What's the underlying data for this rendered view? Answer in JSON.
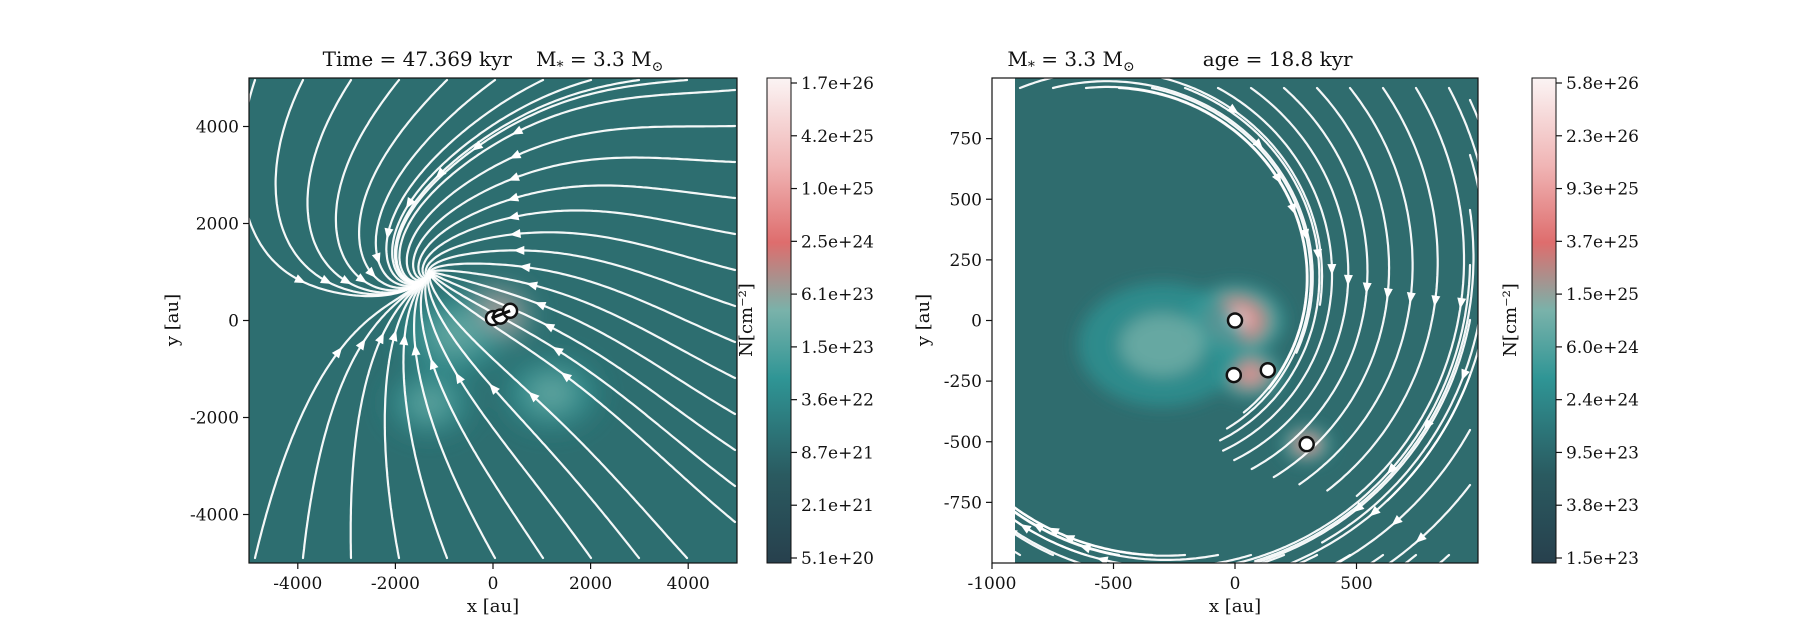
{
  "chart_data": [
    {
      "type": "heatmap",
      "subtype": "column density map with velocity streamlines",
      "title": "Time = 47.369 kyr    M$_*$ = 3.3 M$_\\odot$",
      "title_parts": [
        "Time = 47.369 kyr",
        "M",
        "*",
        " = 3.3 M",
        "⊙"
      ],
      "xlabel": "x [au]",
      "ylabel": "y [au]",
      "xlim": [
        -5000,
        5000
      ],
      "ylim": [
        -5000,
        5000
      ],
      "xticks": [
        "-4000",
        "-2000",
        "0",
        "2000",
        "4000"
      ],
      "xtick_values": [
        -4000,
        -2000,
        0,
        2000,
        4000
      ],
      "yticks": [
        "4000",
        "2000",
        "0",
        "-2000",
        "-4000"
      ],
      "ytick_values": [
        4000,
        2000,
        0,
        -2000,
        -4000
      ],
      "colorbar": {
        "label": "N[cm⁻²]",
        "scale": "log",
        "ticks": [
          "1.7e+26",
          "4.2e+25",
          "1.0e+25",
          "2.5e+24",
          "6.1e+23",
          "1.5e+23",
          "3.6e+22",
          "8.7e+21",
          "2.1e+21",
          "5.1e+20"
        ]
      },
      "sinks": [
        {
          "x": 0,
          "y": 50
        },
        {
          "x": 150,
          "y": 80
        },
        {
          "x": 350,
          "y": 200
        }
      ],
      "sink_edge": [
        {
          "x": -30,
          "y": 50
        },
        {
          "x": 350,
          "y": 200
        }
      ],
      "density_peaks": [
        {
          "x": 0,
          "y": 100,
          "level": 1.0,
          "spread": 700
        },
        {
          "x": -800,
          "y": -300,
          "level": 0.45,
          "spread": 900
        },
        {
          "x": 1200,
          "y": -1500,
          "level": 0.35,
          "spread": 800
        },
        {
          "x": -1300,
          "y": -1700,
          "level": 0.3,
          "spread": 700
        }
      ],
      "grid": false
    },
    {
      "type": "heatmap",
      "subtype": "column density map with velocity streamlines",
      "title": "M$_*$ = 3.3 M$_\\odot$          age = 18.8 kyr",
      "title_parts": [
        "M",
        "*",
        " = 3.3 M",
        "⊙",
        "age = 18.8 kyr"
      ],
      "xlabel": "x [au]",
      "ylabel": "y [au]",
      "xlim": [
        -1000,
        1000
      ],
      "ylim": [
        -1000,
        1000
      ],
      "xticks": [
        "-1000",
        "-500",
        "0",
        "500"
      ],
      "xtick_values": [
        -1000,
        -500,
        0,
        500
      ],
      "yticks": [
        "750",
        "500",
        "250",
        "0",
        "-250",
        "-500",
        "-750"
      ],
      "ytick_values": [
        750,
        500,
        250,
        0,
        -250,
        -500,
        -750
      ],
      "colorbar": {
        "label": "N[cm⁻²]",
        "scale": "log",
        "ticks": [
          "5.8e+26",
          "2.3e+26",
          "9.3e+25",
          "3.7e+25",
          "1.5e+25",
          "6.0e+24",
          "2.4e+24",
          "9.5e+23",
          "3.8e+23",
          "1.5e+23"
        ]
      },
      "sinks": [
        {
          "x": 0,
          "y": 0
        },
        {
          "x": -5,
          "y": -225
        },
        {
          "x": 135,
          "y": -205
        },
        {
          "x": 295,
          "y": -510
        }
      ],
      "density_peaks": [
        {
          "x": 0,
          "y": 0,
          "level": 1.0,
          "spread": 180
        },
        {
          "x": 295,
          "y": -510,
          "level": 0.85,
          "spread": 90
        },
        {
          "x": 60,
          "y": -220,
          "level": 0.7,
          "spread": 120
        },
        {
          "x": -300,
          "y": -100,
          "level": 0.3,
          "spread": 300
        }
      ],
      "grid": false
    }
  ]
}
